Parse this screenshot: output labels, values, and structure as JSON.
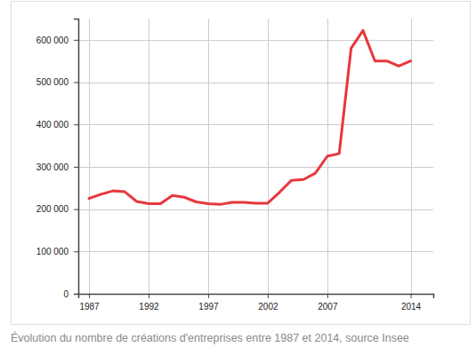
{
  "chart_data": {
    "type": "line",
    "title": "Évolution du nombre de créations d'entreprises entre 1987 et 2014, source Insee",
    "x": [
      1987,
      1988,
      1989,
      1990,
      1991,
      1992,
      1993,
      1994,
      1995,
      1996,
      1997,
      1998,
      1999,
      2000,
      2001,
      2002,
      2003,
      2004,
      2005,
      2006,
      2007,
      2008,
      2009,
      2010,
      2011,
      2012,
      2013,
      2014
    ],
    "values": [
      225000,
      235000,
      243000,
      241000,
      218000,
      213000,
      213000,
      232000,
      228000,
      217000,
      213000,
      211000,
      216000,
      216000,
      214000,
      214000,
      240000,
      268000,
      270000,
      285000,
      325000,
      331000,
      580000,
      622000,
      550000,
      550000,
      538000,
      550000
    ],
    "color": "#e8373c",
    "xlim": [
      1986.1,
      2015.9
    ],
    "xticks": [
      1987,
      1992,
      1997,
      2002,
      2007,
      2014
    ],
    "ylim": [
      0,
      650000
    ],
    "yticks": [
      0,
      {
        "value": 100000,
        "label": "100 000"
      },
      {
        "value": 200000,
        "label": "200 000"
      },
      {
        "value": 300000,
        "label": "300 000"
      },
      {
        "value": 400000,
        "label": "400 000"
      },
      {
        "value": 500000,
        "label": "500 000"
      },
      {
        "value": 600000,
        "label": "600 000"
      }
    ],
    "grid": true
  }
}
